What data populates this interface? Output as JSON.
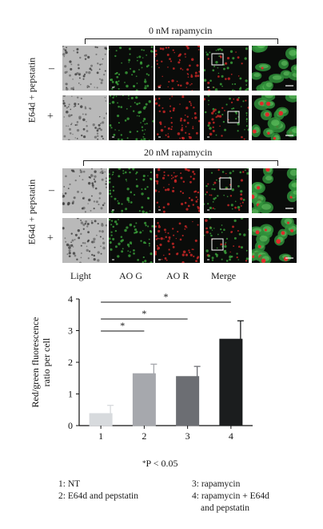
{
  "figure": {
    "top_panel": {
      "condition_label": "0 nM rapamycin",
      "row_group_label": "E64d + pepstatin",
      "rows": [
        {
          "sign": "–"
        },
        {
          "sign": "+"
        }
      ]
    },
    "bottom_panel": {
      "condition_label": "20 nM rapamycin",
      "row_group_label": "E64d + pepstatin",
      "rows": [
        {
          "sign": "–"
        },
        {
          "sign": "+"
        }
      ]
    },
    "columns": [
      "Light",
      "AO G",
      "AO R",
      "Merge"
    ],
    "colors": {
      "light_bg": "#b9b9b9",
      "dark_bg": "#0a0c0a",
      "green": "#3fae3f",
      "red": "#e02a2a",
      "bar1": "#d7dadd",
      "bar2": "#a6a8ad",
      "bar3": "#6c6e73",
      "bar4": "#1b1d1e"
    }
  },
  "chart_data": {
    "type": "bar",
    "categories": [
      "1",
      "2",
      "3",
      "4"
    ],
    "values": [
      0.38,
      1.64,
      1.55,
      2.73
    ],
    "errors": [
      0.26,
      0.3,
      0.32,
      0.58
    ],
    "ylabel_line1": "Red/green fluorescence",
    "ylabel_line2": "ratio per cell",
    "ylim": [
      0,
      4
    ],
    "yticks": [
      "0",
      "1",
      "2",
      "3",
      "4"
    ],
    "significance": [
      {
        "from": "1",
        "to": "2",
        "label": "*"
      },
      {
        "from": "1",
        "to": "3",
        "label": "*"
      },
      {
        "from": "1",
        "to": "4",
        "label": "*"
      }
    ],
    "pvalue_star": "*",
    "pvalue_text": "P < 0.05",
    "legend": [
      "1: NT",
      "2: E64d and pepstatin",
      "3: rapamycin",
      "4: rapamycin + E64d",
      "and pepstatin"
    ]
  }
}
